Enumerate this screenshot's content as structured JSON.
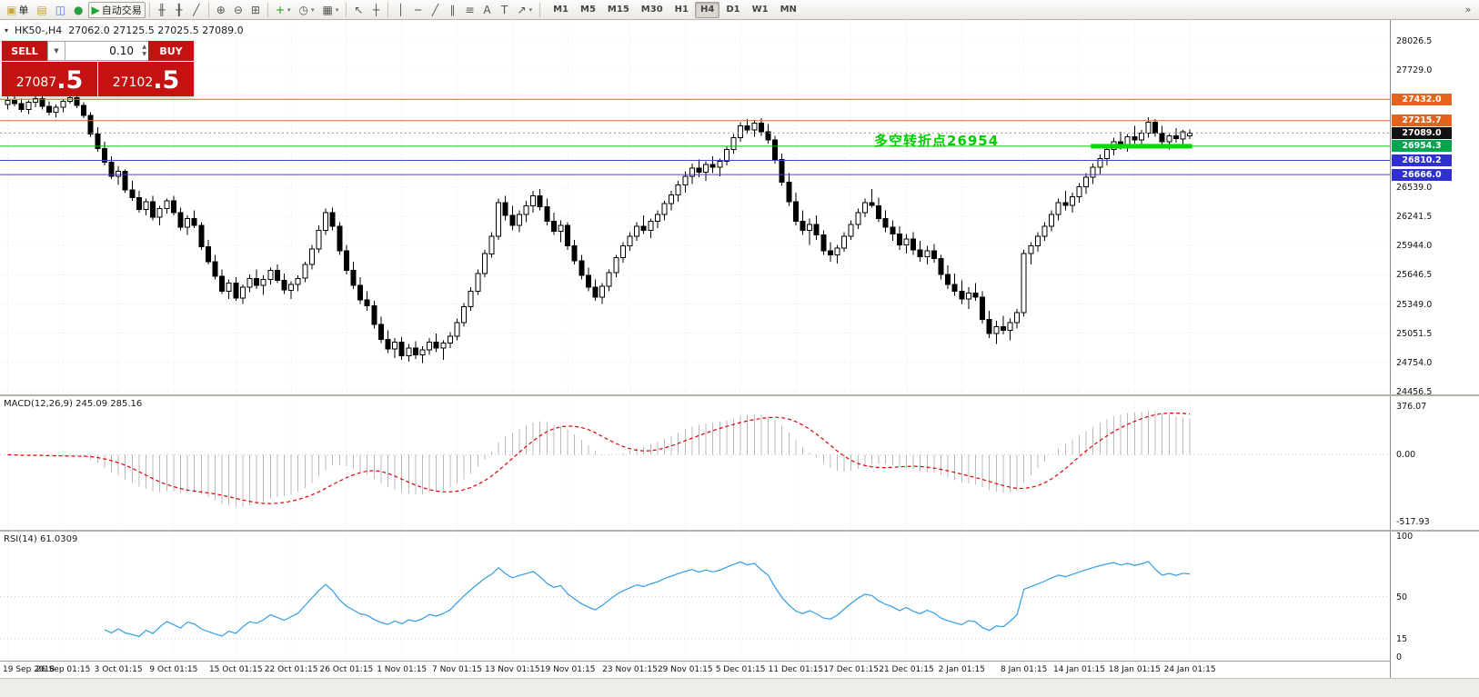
{
  "icons": {
    "caret_down": "▼",
    "caret_up": "▲",
    "expander": "▾",
    "toolbar_caret": "▾"
  },
  "toolbar": {
    "items": [
      {
        "t": "btn",
        "name": "new-order-button",
        "glyph": "▣",
        "glyph_color": "#caa53c",
        "label": "单"
      },
      {
        "t": "btn",
        "name": "accounts-icon",
        "glyph": "▤",
        "glyph_color": "#c9a227"
      },
      {
        "t": "btn",
        "name": "profiles-icon",
        "glyph": "◫",
        "glyph_color": "#4a7dc9"
      },
      {
        "t": "btn",
        "name": "market-watch-icon",
        "glyph": "●",
        "glyph_color": "#2e9e44"
      },
      {
        "t": "btn",
        "name": "auto-trading-button",
        "glyph": "▶",
        "glyph_color": "#18a92c",
        "label": "自动交易",
        "boxed": true
      },
      {
        "t": "sep"
      },
      {
        "t": "btn",
        "name": "bar-chart-icon",
        "glyph": "╫"
      },
      {
        "t": "btn",
        "name": "candlestick-chart-icon",
        "glyph": "╂"
      },
      {
        "t": "btn",
        "name": "line-chart-icon",
        "glyph": "╱"
      },
      {
        "t": "sep"
      },
      {
        "t": "btn",
        "name": "zoom-in-icon",
        "glyph": "⊕"
      },
      {
        "t": "btn",
        "name": "zoom-out-icon",
        "glyph": "⊖"
      },
      {
        "t": "btn",
        "name": "tile-windows-icon",
        "glyph": "⊞"
      },
      {
        "t": "sep"
      },
      {
        "t": "btn",
        "name": "indicators-icon",
        "glyph": "+",
        "glyph_color": "#18a000",
        "caret": true
      },
      {
        "t": "btn",
        "name": "periods-icon",
        "glyph": "◷",
        "caret": true
      },
      {
        "t": "btn",
        "name": "templates-icon",
        "glyph": "▦",
        "caret": true
      },
      {
        "t": "sep"
      },
      {
        "t": "btn",
        "name": "cursor-icon",
        "glyph": "↖"
      },
      {
        "t": "btn",
        "name": "crosshair-icon",
        "glyph": "┼"
      },
      {
        "t": "sep"
      },
      {
        "t": "btn",
        "name": "vertical-line-icon",
        "glyph": "│"
      },
      {
        "t": "btn",
        "name": "horizontal-line-icon",
        "glyph": "─"
      },
      {
        "t": "btn",
        "name": "trendline-icon",
        "glyph": "╱"
      },
      {
        "t": "btn",
        "name": "channel-icon",
        "glyph": "∥"
      },
      {
        "t": "btn",
        "name": "fibonacci-icon",
        "glyph": "≡"
      },
      {
        "t": "btn",
        "name": "text-icon",
        "glyph": "A"
      },
      {
        "t": "btn",
        "name": "label-icon",
        "glyph": "T"
      },
      {
        "t": "btn",
        "name": "arrows-icon",
        "glyph": "↗",
        "caret": true
      },
      {
        "t": "sep"
      }
    ],
    "timeframes": {
      "labels": [
        "M1",
        "M5",
        "M15",
        "M30",
        "H1",
        "H4",
        "D1",
        "W1",
        "MN"
      ],
      "active": "H4"
    },
    "more_glyph": "»"
  },
  "trade_panel": {
    "sell_label": "SELL",
    "buy_label": "BUY",
    "volume": "0.10",
    "bid": {
      "small": "27087",
      "big": ".5"
    },
    "ask": {
      "small": "27102",
      "big": ".5"
    }
  },
  "chart": {
    "header": {
      "symbol": "HK50-,H4",
      "ohlc": "27062.0 27125.5 27025.5 27089.0"
    },
    "annotation": {
      "text": "多空转折点26954",
      "color": "#00cc00"
    },
    "levels": [
      {
        "label": "27432.0",
        "price": 27432.0,
        "tag": "#e2641c",
        "line": "#e2641c"
      },
      {
        "label": "27215.7",
        "price": 27215.7,
        "tag": "#e2641c",
        "line": "#e2641c"
      },
      {
        "label": "27089.0",
        "price": 27089.0,
        "tag": "#111111",
        "line": "#999999",
        "current": true
      },
      {
        "label": "26954.3",
        "price": 26954.3,
        "tag": "#00a44e",
        "line": "#00c800"
      },
      {
        "label": "26810.2",
        "price": 26810.2,
        "tag": "#3030cf",
        "line": "#4343cf"
      },
      {
        "label": "26666.0",
        "price": 26666.0,
        "tag": "#3030cf",
        "line": "#4343cf"
      }
    ],
    "highlight": {
      "price": 26954.3,
      "from_bar": 157,
      "to_bar": 171,
      "color": "#00dc00",
      "height": 5
    },
    "y_axis": {
      "step": 297.5,
      "ticks": [
        "28026.5",
        "27729.0",
        "26539.0",
        "26241.5",
        "25944.0",
        "25646.5",
        "25349.0",
        "25051.5",
        "24754.0",
        "24456.5"
      ]
    }
  },
  "macd": {
    "label": "MACD(12,26,9) 245.09 285.16",
    "fast": 12,
    "slow": 26,
    "signal": 9,
    "axis_max": 376.07,
    "axis_min": -517.93,
    "axis_labels": [
      "376.07",
      "0.00",
      "-517.93"
    ],
    "hist_color": "#b9b9b9",
    "signal_color": "#e00000"
  },
  "rsi": {
    "label": "RSI(14) 61.0309",
    "period": 14,
    "axis_values": [
      100,
      50,
      15,
      0
    ],
    "levels": [
      50,
      15
    ],
    "line_color": "#2f9de4"
  },
  "time_axis": {
    "labels": [
      "19 Sep 2018",
      "26 Sep 01:15",
      "3 Oct 01:15",
      "9 Oct 01:15",
      "15 Oct 01:15",
      "22 Oct 01:15",
      "26 Oct 01:15",
      "1 Nov 01:15",
      "7 Nov 01:15",
      "13 Nov 01:15",
      "19 Nov 01:15",
      "23 Nov 01:15",
      "29 Nov 01:15",
      "5 Dec 01:15",
      "11 Dec 01:15",
      "17 Dec 01:15",
      "21 Dec 01:15",
      "2 Jan 01:15",
      "8 Jan 01:15",
      "14 Jan 01:15",
      "18 Jan 01:15",
      "24 Jan 01:15"
    ]
  },
  "chart_data": {
    "type": "candlestick",
    "symbol": "HK50-",
    "timeframe": "H4",
    "price_min": 24456.5,
    "price_max": 28026.5,
    "candles": [
      [
        27380,
        27460,
        27330,
        27420
      ],
      [
        27420,
        27470,
        27360,
        27390
      ],
      [
        27390,
        27440,
        27300,
        27330
      ],
      [
        27330,
        27420,
        27280,
        27400
      ],
      [
        27400,
        27480,
        27350,
        27440
      ],
      [
        27440,
        27470,
        27330,
        27360
      ],
      [
        27360,
        27410,
        27270,
        27300
      ],
      [
        27300,
        27380,
        27250,
        27350
      ],
      [
        27350,
        27430,
        27300,
        27410
      ],
      [
        27410,
        27480,
        27390,
        27450
      ],
      [
        27450,
        27490,
        27340,
        27370
      ],
      [
        27370,
        27400,
        27240,
        27270
      ],
      [
        27270,
        27300,
        27050,
        27080
      ],
      [
        27080,
        27150,
        26900,
        26930
      ],
      [
        26930,
        27000,
        26760,
        26790
      ],
      [
        26790,
        26850,
        26620,
        26650
      ],
      [
        26650,
        26750,
        26560,
        26700
      ],
      [
        26700,
        26720,
        26480,
        26510
      ],
      [
        26510,
        26600,
        26400,
        26430
      ],
      [
        26430,
        26500,
        26280,
        26310
      ],
      [
        26310,
        26420,
        26250,
        26390
      ],
      [
        26390,
        26450,
        26200,
        26230
      ],
      [
        26230,
        26350,
        26150,
        26320
      ],
      [
        26320,
        26420,
        26270,
        26400
      ],
      [
        26400,
        26450,
        26250,
        26280
      ],
      [
        26280,
        26330,
        26100,
        26130
      ],
      [
        26130,
        26250,
        26050,
        26220
      ],
      [
        26220,
        26300,
        26120,
        26150
      ],
      [
        26150,
        26180,
        25900,
        25930
      ],
      [
        25930,
        26000,
        25750,
        25780
      ],
      [
        25780,
        25850,
        25600,
        25630
      ],
      [
        25630,
        25700,
        25450,
        25480
      ],
      [
        25480,
        25600,
        25400,
        25560
      ],
      [
        25560,
        25620,
        25380,
        25410
      ],
      [
        25410,
        25550,
        25350,
        25520
      ],
      [
        25520,
        25650,
        25470,
        25610
      ],
      [
        25610,
        25700,
        25500,
        25540
      ],
      [
        25540,
        25640,
        25440,
        25600
      ],
      [
        25600,
        25720,
        25550,
        25690
      ],
      [
        25690,
        25750,
        25560,
        25590
      ],
      [
        25590,
        25660,
        25450,
        25490
      ],
      [
        25490,
        25580,
        25400,
        25550
      ],
      [
        25550,
        25640,
        25480,
        25610
      ],
      [
        25610,
        25780,
        25570,
        25750
      ],
      [
        25750,
        25950,
        25700,
        25910
      ],
      [
        25910,
        26150,
        25870,
        26100
      ],
      [
        26100,
        26320,
        26050,
        26280
      ],
      [
        26280,
        26330,
        26100,
        26140
      ],
      [
        26140,
        26180,
        25850,
        25890
      ],
      [
        25890,
        25950,
        25650,
        25690
      ],
      [
        25690,
        25780,
        25500,
        25540
      ],
      [
        25540,
        25620,
        25350,
        25390
      ],
      [
        25390,
        25480,
        25280,
        25330
      ],
      [
        25330,
        25380,
        25100,
        25140
      ],
      [
        25140,
        25220,
        24950,
        24990
      ],
      [
        24990,
        25080,
        24850,
        24890
      ],
      [
        24890,
        25000,
        24800,
        24960
      ],
      [
        24960,
        25010,
        24780,
        24820
      ],
      [
        24820,
        24940,
        24760,
        24900
      ],
      [
        24900,
        24970,
        24790,
        24830
      ],
      [
        24830,
        24920,
        24750,
        24880
      ],
      [
        24880,
        25000,
        24830,
        24960
      ],
      [
        24960,
        25050,
        24860,
        24900
      ],
      [
        24900,
        24980,
        24780,
        24950
      ],
      [
        24950,
        25060,
        24900,
        25020
      ],
      [
        25020,
        25200,
        24980,
        25160
      ],
      [
        25160,
        25360,
        25120,
        25320
      ],
      [
        25320,
        25520,
        25280,
        25480
      ],
      [
        25480,
        25700,
        25440,
        25660
      ],
      [
        25660,
        25900,
        25620,
        25860
      ],
      [
        25860,
        26080,
        25820,
        26040
      ],
      [
        26040,
        26420,
        26000,
        26380
      ],
      [
        26380,
        26450,
        26200,
        26250
      ],
      [
        26250,
        26350,
        26100,
        26150
      ],
      [
        26150,
        26300,
        26080,
        26260
      ],
      [
        26260,
        26400,
        26180,
        26350
      ],
      [
        26350,
        26500,
        26280,
        26450
      ],
      [
        26450,
        26520,
        26300,
        26340
      ],
      [
        26340,
        26420,
        26150,
        26190
      ],
      [
        26190,
        26280,
        26050,
        26090
      ],
      [
        26090,
        26200,
        25980,
        26150
      ],
      [
        26150,
        26180,
        25900,
        25940
      ],
      [
        25940,
        26000,
        25750,
        25790
      ],
      [
        25790,
        25850,
        25600,
        25640
      ],
      [
        25640,
        25720,
        25480,
        25520
      ],
      [
        25520,
        25600,
        25380,
        25420
      ],
      [
        25420,
        25560,
        25350,
        25530
      ],
      [
        25530,
        25700,
        25480,
        25670
      ],
      [
        25670,
        25850,
        25620,
        25820
      ],
      [
        25820,
        25980,
        25770,
        25940
      ],
      [
        25940,
        26080,
        25890,
        26040
      ],
      [
        26040,
        26180,
        25990,
        26140
      ],
      [
        26140,
        26250,
        26060,
        26100
      ],
      [
        26100,
        26220,
        26020,
        26190
      ],
      [
        26190,
        26300,
        26120,
        26260
      ],
      [
        26260,
        26400,
        26200,
        26370
      ],
      [
        26370,
        26500,
        26300,
        26460
      ],
      [
        26460,
        26600,
        26390,
        26560
      ],
      [
        26560,
        26700,
        26480,
        26650
      ],
      [
        26650,
        26780,
        26570,
        26730
      ],
      [
        26730,
        26820,
        26640,
        26690
      ],
      [
        26690,
        26800,
        26600,
        26770
      ],
      [
        26770,
        26850,
        26680,
        26740
      ],
      [
        26740,
        26830,
        26650,
        26800
      ],
      [
        26800,
        26950,
        26760,
        26920
      ],
      [
        26920,
        27080,
        26880,
        27040
      ],
      [
        27040,
        27200,
        27000,
        27160
      ],
      [
        27160,
        27230,
        27080,
        27120
      ],
      [
        27120,
        27220,
        27050,
        27190
      ],
      [
        27190,
        27240,
        27060,
        27100
      ],
      [
        27100,
        27180,
        26980,
        27020
      ],
      [
        27020,
        27060,
        26780,
        26820
      ],
      [
        26820,
        26880,
        26550,
        26590
      ],
      [
        26590,
        26680,
        26350,
        26390
      ],
      [
        26390,
        26480,
        26150,
        26190
      ],
      [
        26190,
        26300,
        26050,
        26100
      ],
      [
        26100,
        26220,
        25950,
        26160
      ],
      [
        26160,
        26250,
        26000,
        26050
      ],
      [
        26050,
        26100,
        25850,
        25890
      ],
      [
        25890,
        25980,
        25780,
        25850
      ],
      [
        25850,
        25950,
        25760,
        25920
      ],
      [
        25920,
        26080,
        25880,
        26040
      ],
      [
        26040,
        26200,
        26000,
        26160
      ],
      [
        26160,
        26320,
        26110,
        26280
      ],
      [
        26280,
        26420,
        26230,
        26380
      ],
      [
        26380,
        26520,
        26330,
        26350
      ],
      [
        26350,
        26430,
        26180,
        26220
      ],
      [
        26220,
        26300,
        26080,
        26130
      ],
      [
        26130,
        26200,
        25990,
        26060
      ],
      [
        26060,
        26140,
        25900,
        25950
      ],
      [
        25950,
        26060,
        25860,
        26010
      ],
      [
        26010,
        26080,
        25850,
        25900
      ],
      [
        25900,
        25990,
        25780,
        25830
      ],
      [
        25830,
        25940,
        25750,
        25890
      ],
      [
        25890,
        25960,
        25770,
        25810
      ],
      [
        25810,
        25850,
        25600,
        25650
      ],
      [
        25650,
        25740,
        25500,
        25550
      ],
      [
        25550,
        25660,
        25430,
        25480
      ],
      [
        25480,
        25590,
        25350,
        25400
      ],
      [
        25400,
        25520,
        25300,
        25460
      ],
      [
        25460,
        25560,
        25380,
        25420
      ],
      [
        25420,
        25480,
        25150,
        25190
      ],
      [
        25190,
        25280,
        25000,
        25050
      ],
      [
        25050,
        25180,
        24940,
        25120
      ],
      [
        25120,
        25230,
        25040,
        25080
      ],
      [
        25080,
        25200,
        24980,
        25160
      ],
      [
        25160,
        25300,
        25100,
        25260
      ],
      [
        25260,
        25900,
        25220,
        25860
      ],
      [
        25860,
        25980,
        25750,
        25940
      ],
      [
        25940,
        26080,
        25880,
        26040
      ],
      [
        26040,
        26180,
        25990,
        26140
      ],
      [
        26140,
        26300,
        26090,
        26260
      ],
      [
        26260,
        26420,
        26200,
        26380
      ],
      [
        26380,
        26500,
        26300,
        26350
      ],
      [
        26350,
        26480,
        26280,
        26440
      ],
      [
        26440,
        26580,
        26380,
        26540
      ],
      [
        26540,
        26680,
        26470,
        26640
      ],
      [
        26640,
        26780,
        26570,
        26740
      ],
      [
        26740,
        26870,
        26670,
        26830
      ],
      [
        26830,
        26960,
        26760,
        26920
      ],
      [
        26920,
        27040,
        26860,
        27000
      ],
      [
        27000,
        27100,
        26920,
        26960
      ],
      [
        26960,
        27080,
        26900,
        27050
      ],
      [
        27050,
        27160,
        26980,
        27020
      ],
      [
        27020,
        27120,
        26940,
        27090
      ],
      [
        27090,
        27250,
        27040,
        27200
      ],
      [
        27200,
        27230,
        27050,
        27090
      ],
      [
        27090,
        27160,
        26960,
        27000
      ],
      [
        27000,
        27080,
        26920,
        27060
      ],
      [
        27060,
        27140,
        26990,
        27030
      ],
      [
        27030,
        27120,
        26970,
        27100
      ],
      [
        27062,
        27125.5,
        27025.5,
        27089
      ]
    ]
  }
}
